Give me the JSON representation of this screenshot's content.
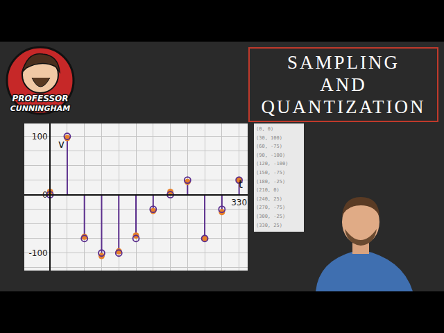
{
  "logo": {
    "lines": [
      "PROFESSOR",
      "CUNNINGHAM"
    ]
  },
  "title_box": {
    "lines": [
      "SAMPLING",
      "AND",
      "QUANTIZATION"
    ]
  },
  "sample_list": [
    "(0, 0)",
    "(30, 100)",
    "(60, -75)",
    "(90, -100)",
    "(120, -100)",
    "(150, -75)",
    "(180, -25)",
    "(210, 0)",
    "(240, 25)",
    "(270, -75)",
    "(300, -25)",
    "(330, 25)"
  ],
  "chart_data": {
    "type": "stem",
    "xlabel": "t",
    "ylabel": "v",
    "x": [
      0,
      30,
      60,
      90,
      120,
      150,
      180,
      210,
      240,
      270,
      300,
      330
    ],
    "series": [
      {
        "type": "scatter",
        "color": "#e8812a",
        "marker": "circle",
        "values": [
          5,
          97,
          -72,
          -105,
          -97,
          -70,
          -28,
          5,
          22,
          -75,
          -30,
          25
        ]
      },
      {
        "type": "stem",
        "color": "#5a2d8c",
        "marker": "circle-open",
        "values": [
          0,
          100,
          -75,
          -100,
          -100,
          -75,
          -25,
          0,
          25,
          -75,
          -25,
          25
        ]
      }
    ],
    "xlim": [
      -45,
      345
    ],
    "ylim": [
      -130,
      122
    ],
    "xticks": [
      330
    ],
    "yticks": [
      -100,
      0,
      100
    ],
    "grid": true
  }
}
